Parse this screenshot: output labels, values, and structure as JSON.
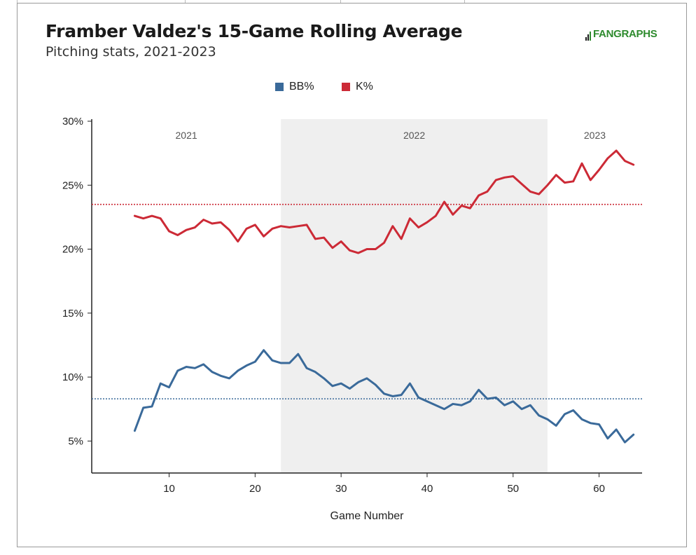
{
  "title": "Framber Valdez's 15-Game Rolling Average",
  "subtitle": "Pitching stats, 2021-2023",
  "logo_text": "FANGRAPHS",
  "colors": {
    "bb": "#3a6a9a",
    "k": "#cc2a36",
    "shade": "#efefef",
    "logo": "#2e8b2e"
  },
  "chart_data": {
    "type": "line",
    "xlabel": "Game Number",
    "ylabel": "",
    "xlim": [
      1,
      65
    ],
    "ylim": [
      2.5,
      30
    ],
    "xticks": [
      10,
      20,
      30,
      40,
      50,
      60
    ],
    "yticks": [
      5,
      10,
      15,
      20,
      25,
      30
    ],
    "ytick_labels": [
      "5%",
      "10%",
      "15%",
      "20%",
      "25%",
      "30%"
    ],
    "legend": [
      "BB%",
      "K%"
    ],
    "legend_position": "top-center",
    "grid": false,
    "season_bands": [
      {
        "label": "2021",
        "from": 1,
        "to": 23,
        "shaded": false
      },
      {
        "label": "2022",
        "from": 23,
        "to": 54,
        "shaded": true
      },
      {
        "label": "2023",
        "from": 54,
        "to": 65,
        "shaded": false
      }
    ],
    "reference_lines": [
      {
        "series": "K%",
        "value": 23.5
      },
      {
        "series": "BB%",
        "value": 8.3
      }
    ],
    "x": [
      6,
      7,
      8,
      9,
      10,
      11,
      12,
      13,
      14,
      15,
      16,
      17,
      18,
      19,
      20,
      21,
      22,
      23,
      24,
      25,
      26,
      27,
      28,
      29,
      30,
      31,
      32,
      33,
      34,
      35,
      36,
      37,
      38,
      39,
      40,
      41,
      42,
      43,
      44,
      45,
      46,
      47,
      48,
      49,
      50,
      51,
      52,
      53,
      54,
      55,
      56,
      57,
      58,
      59,
      60,
      61,
      62,
      63,
      64
    ],
    "series": [
      {
        "name": "K%",
        "values": [
          22.6,
          22.4,
          22.6,
          22.4,
          21.4,
          21.1,
          21.5,
          21.7,
          22.3,
          22.0,
          22.1,
          21.5,
          20.6,
          21.6,
          21.9,
          21.0,
          21.6,
          21.8,
          21.7,
          21.8,
          21.9,
          20.8,
          20.9,
          20.1,
          20.6,
          19.9,
          19.7,
          20.0,
          20.0,
          20.5,
          21.8,
          20.8,
          22.4,
          21.7,
          22.1,
          22.6,
          23.7,
          22.7,
          23.4,
          23.2,
          24.2,
          24.5,
          25.4,
          25.6,
          25.7,
          25.1,
          24.5,
          24.3,
          25.0,
          25.8,
          25.2,
          25.3,
          26.7,
          25.4,
          26.2,
          27.1,
          27.7,
          26.9,
          26.6
        ]
      },
      {
        "name": "BB%",
        "values": [
          5.8,
          7.6,
          7.7,
          9.5,
          9.2,
          10.5,
          10.8,
          10.7,
          11.0,
          10.4,
          10.1,
          9.9,
          10.5,
          10.9,
          11.2,
          12.1,
          11.3,
          11.1,
          11.1,
          11.8,
          10.7,
          10.4,
          9.9,
          9.3,
          9.5,
          9.1,
          9.6,
          9.9,
          9.4,
          8.7,
          8.5,
          8.6,
          9.5,
          8.4,
          8.1,
          7.8,
          7.5,
          7.9,
          7.8,
          8.1,
          9.0,
          8.3,
          8.4,
          7.8,
          8.1,
          7.5,
          7.8,
          7.0,
          6.7,
          6.2,
          7.1,
          7.4,
          6.7,
          6.4,
          6.3,
          5.2,
          5.9,
          4.9,
          5.5
        ]
      }
    ]
  }
}
